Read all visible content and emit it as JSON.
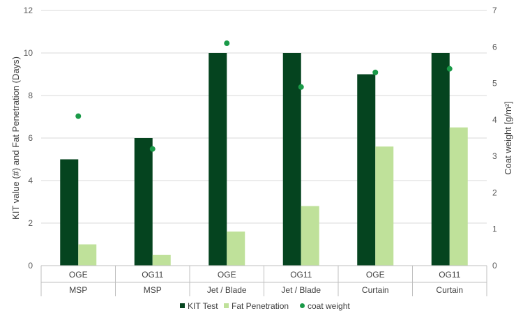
{
  "chart_data": {
    "type": "bar",
    "title": "",
    "categories": [
      {
        "level1": "OGE",
        "level2": "MSP"
      },
      {
        "level1": "OG11",
        "level2": "MSP"
      },
      {
        "level1": "OGE",
        "level2": "Jet / Blade"
      },
      {
        "level1": "OG11",
        "level2": "Jet / Blade"
      },
      {
        "level1": "OGE",
        "level2": "Curtain"
      },
      {
        "level1": "OG11",
        "level2": "Curtain"
      }
    ],
    "series": [
      {
        "name": "KIT Test",
        "type": "bar",
        "axis": "left",
        "color": "#05441f",
        "values": [
          5,
          6,
          10,
          10,
          9,
          10
        ]
      },
      {
        "name": "Fat Penetration",
        "type": "bar",
        "axis": "left",
        "color": "#bfe19a",
        "values": [
          1,
          0.5,
          1.6,
          2.8,
          5.6,
          6.5
        ]
      },
      {
        "name": "coat weight",
        "type": "scatter",
        "axis": "right",
        "color": "#1a9a48",
        "values": [
          4.1,
          3.2,
          6.1,
          4.9,
          5.3,
          5.4
        ]
      }
    ],
    "ylabel": "KIT value (#) and Fat Penetration (Days)",
    "y2label": "Coat weight [g/m²]",
    "ylim": [
      0,
      12
    ],
    "yticks": [
      0,
      2,
      4,
      6,
      8,
      10,
      12
    ],
    "y2lim": [
      0,
      7
    ],
    "y2ticks": [
      0,
      1,
      2,
      3,
      4,
      5,
      6,
      7
    ],
    "grid": true,
    "legend_position": "bottom"
  }
}
